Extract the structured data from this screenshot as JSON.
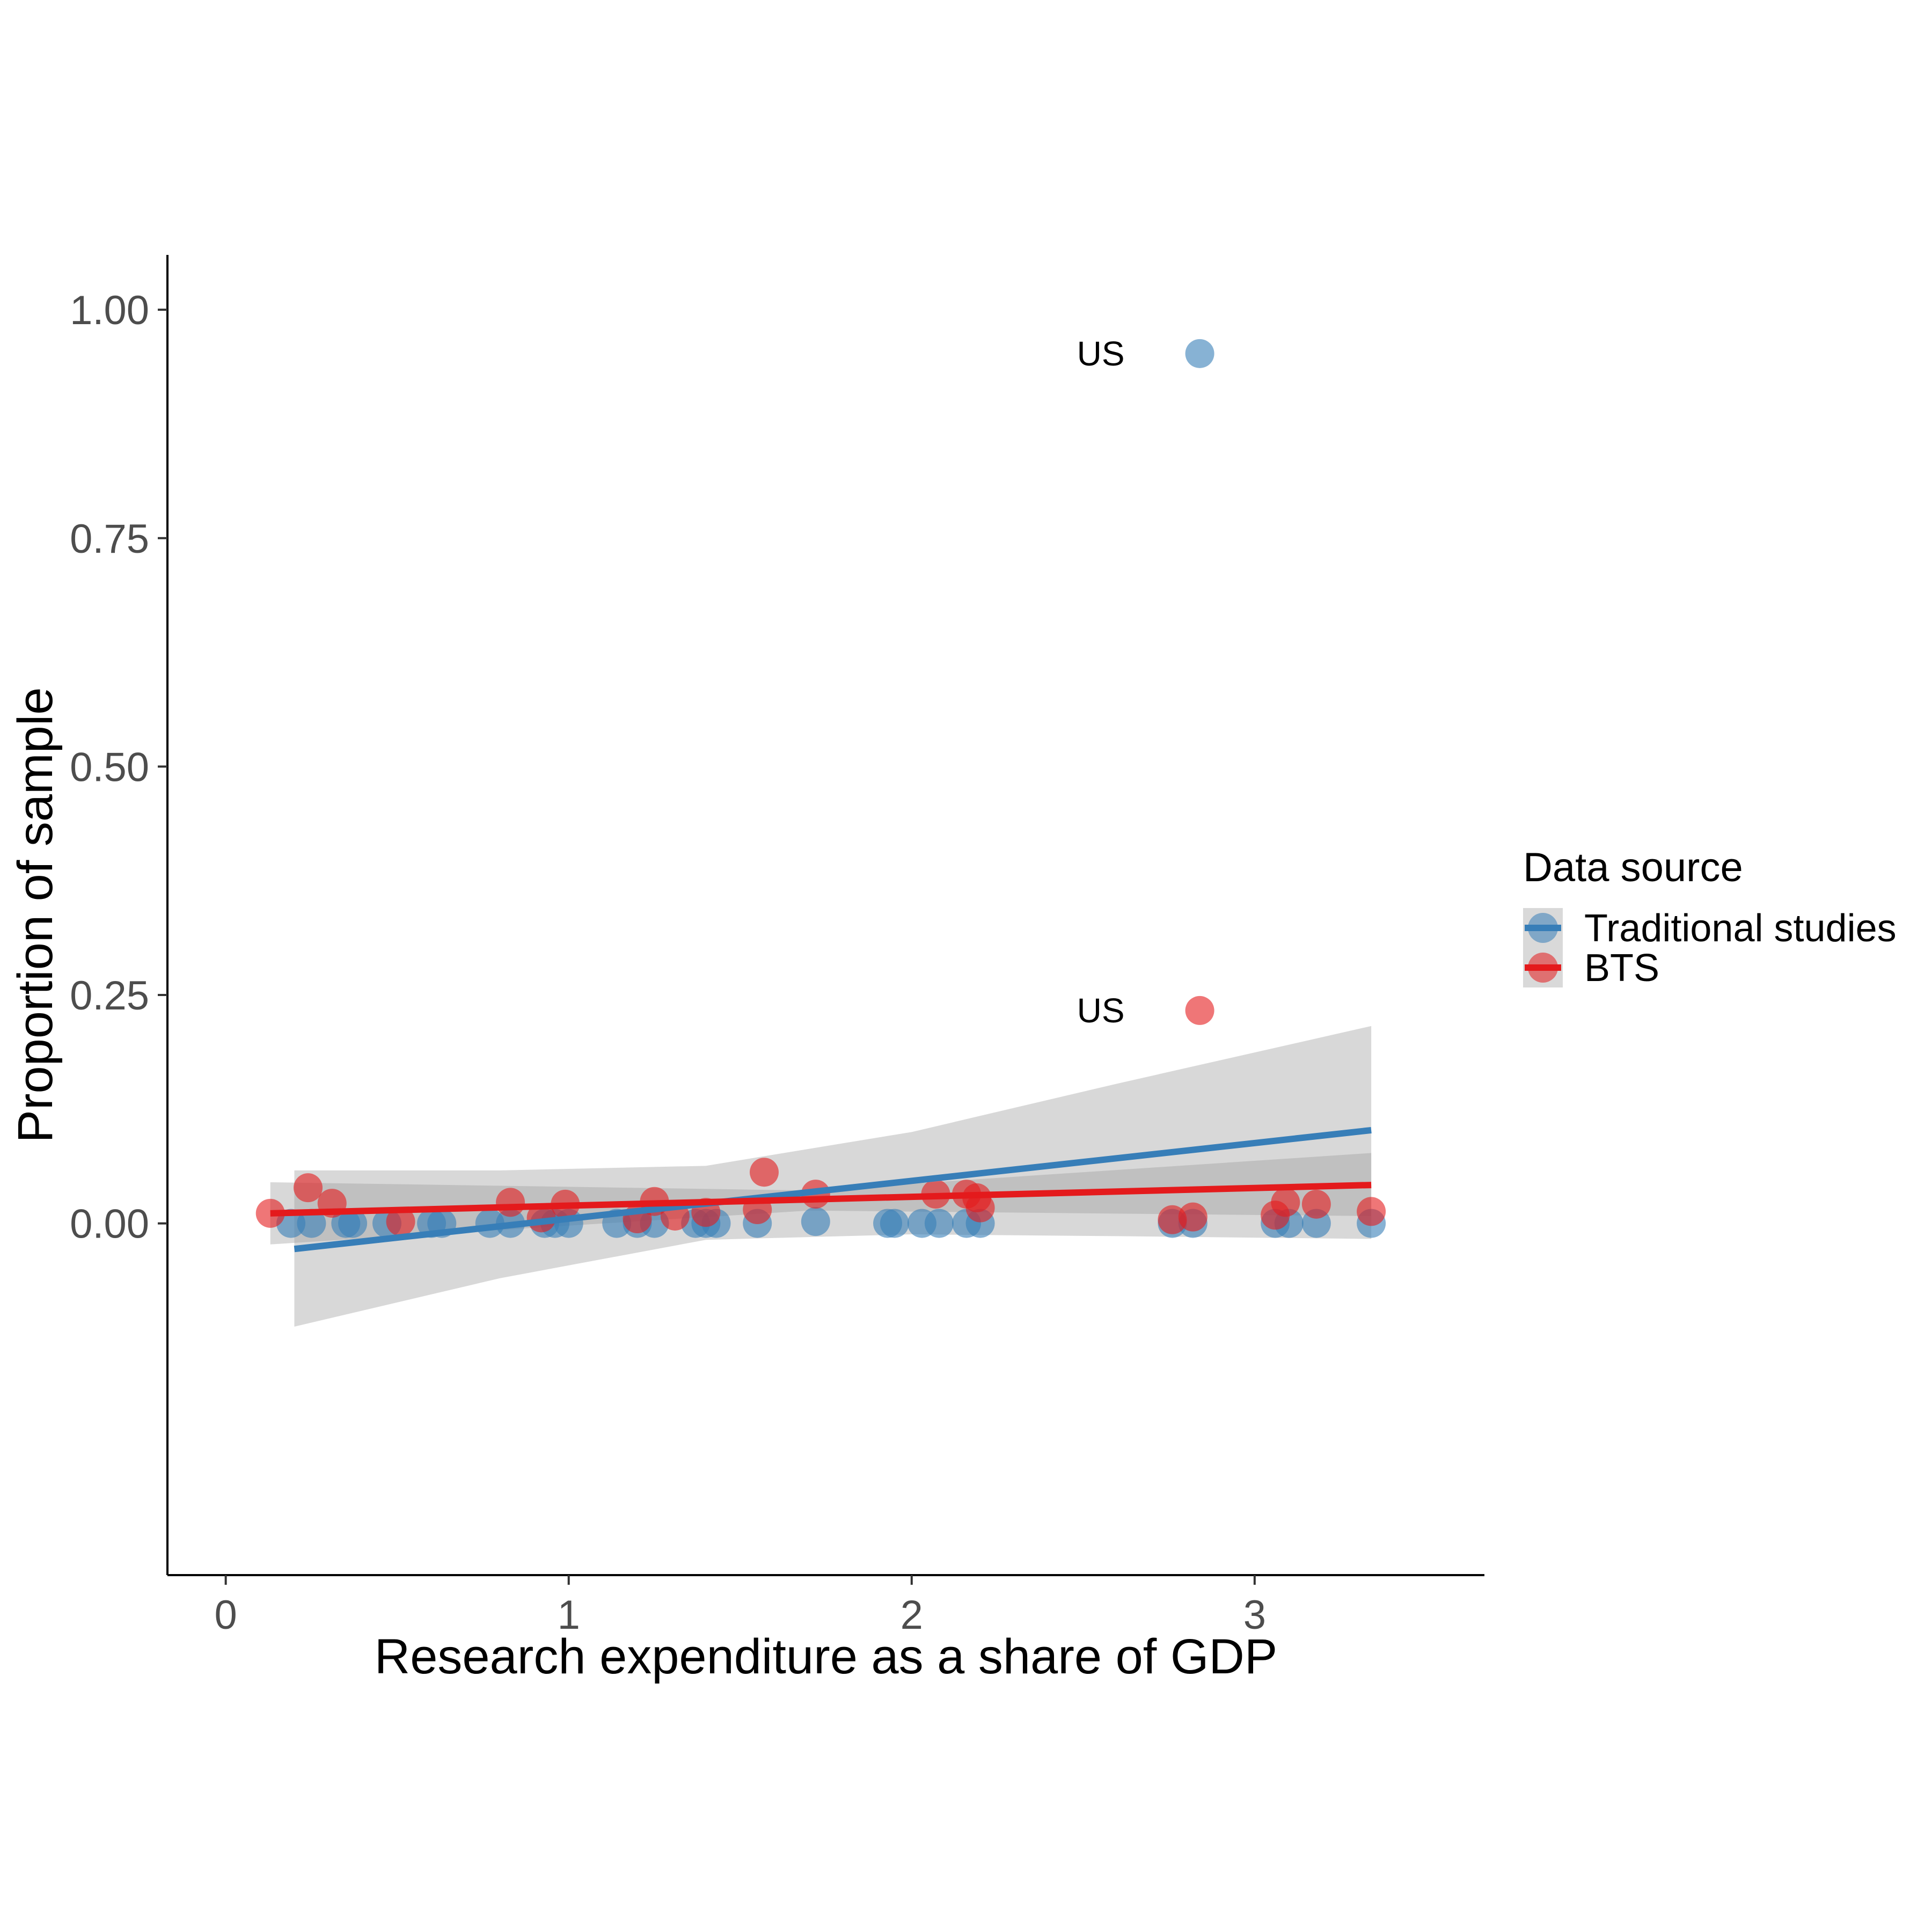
{
  "chart_data": {
    "type": "scatter",
    "title": "",
    "xlabel": "Research expenditure as a share of GDP",
    "ylabel": "Proportion of sample",
    "xlim": [
      -0.17,
      3.67
    ],
    "ylim": [
      -0.385,
      2.5
    ],
    "x_ticks": [
      0,
      1,
      2,
      3
    ],
    "x_tick_labels": [
      "0",
      "1",
      "2",
      "3"
    ],
    "y_ticks": [
      0,
      0.25,
      0.5,
      0.75,
      1.0
    ],
    "y_tick_labels": [
      "0.00",
      "0.25",
      "0.50",
      "0.75",
      "1.00"
    ],
    "y_display_max": 1.06,
    "grid": false,
    "legend": {
      "title": "Data source",
      "position": "right",
      "entries": [
        "Traditional studies",
        "BTS"
      ]
    },
    "series": [
      {
        "name": "Traditional studies",
        "color": "#377eb8",
        "points": [
          [
            0.19,
            0.0
          ],
          [
            0.25,
            0.0
          ],
          [
            0.35,
            0.0
          ],
          [
            0.37,
            0.0
          ],
          [
            0.47,
            0.0
          ],
          [
            0.6,
            0.0
          ],
          [
            0.63,
            0.0
          ],
          [
            0.77,
            0.0
          ],
          [
            0.83,
            0.0
          ],
          [
            0.93,
            0.0
          ],
          [
            0.96,
            0.0
          ],
          [
            1.0,
            0.0
          ],
          [
            1.14,
            0.0
          ],
          [
            1.2,
            0.0
          ],
          [
            1.25,
            0.0
          ],
          [
            1.37,
            0.0
          ],
          [
            1.4,
            0.0
          ],
          [
            1.43,
            0.0
          ],
          [
            1.55,
            0.0
          ],
          [
            1.72,
            0.002
          ],
          [
            1.93,
            0.0
          ],
          [
            1.95,
            0.0
          ],
          [
            2.03,
            0.0
          ],
          [
            2.08,
            0.0
          ],
          [
            2.16,
            0.0
          ],
          [
            2.2,
            0.0
          ],
          [
            2.76,
            0.0
          ],
          [
            2.82,
            0.0
          ],
          [
            2.84,
            0.952
          ],
          [
            3.06,
            0.0
          ],
          [
            3.1,
            0.0
          ],
          [
            3.18,
            0.0
          ],
          [
            3.34,
            0.0
          ]
        ],
        "fit": {
          "x": [
            0.2,
            3.34
          ],
          "y": [
            -0.028,
            0.102
          ]
        },
        "ci": {
          "x": [
            0.2,
            0.8,
            1.4,
            2.0,
            2.6,
            3.34
          ],
          "lower": [
            -0.113,
            -0.06,
            -0.018,
            -0.012,
            -0.014,
            -0.017
          ],
          "upper": [
            0.058,
            0.058,
            0.063,
            0.1,
            0.153,
            0.216
          ]
        },
        "labels": [
          {
            "x": 2.84,
            "y": 0.952,
            "text": "US"
          }
        ]
      },
      {
        "name": "BTS",
        "color": "#e41a1c",
        "points": [
          [
            0.13,
            0.011
          ],
          [
            0.24,
            0.039
          ],
          [
            0.31,
            0.022
          ],
          [
            0.51,
            0.002
          ],
          [
            0.83,
            0.023
          ],
          [
            0.92,
            0.006
          ],
          [
            0.99,
            0.021
          ],
          [
            1.2,
            0.005
          ],
          [
            1.25,
            0.024
          ],
          [
            1.31,
            0.008
          ],
          [
            1.4,
            0.012
          ],
          [
            1.55,
            0.015
          ],
          [
            1.57,
            0.056
          ],
          [
            1.72,
            0.032
          ],
          [
            2.07,
            0.032
          ],
          [
            2.16,
            0.032
          ],
          [
            2.19,
            0.028
          ],
          [
            2.2,
            0.017
          ],
          [
            2.76,
            0.004
          ],
          [
            2.82,
            0.007
          ],
          [
            2.84,
            0.233
          ],
          [
            3.06,
            0.009
          ],
          [
            3.09,
            0.023
          ],
          [
            3.18,
            0.021
          ],
          [
            3.34,
            0.013
          ]
        ],
        "fit": {
          "x": [
            0.13,
            3.34
          ],
          "y": [
            0.011,
            0.042
          ]
        },
        "ci": {
          "x": [
            0.13,
            1.7,
            3.34
          ],
          "lower": [
            -0.023,
            0.014,
            0.008
          ],
          "upper": [
            0.045,
            0.036,
            0.077
          ]
        },
        "labels": [
          {
            "x": 2.84,
            "y": 0.233,
            "text": "US"
          }
        ]
      }
    ]
  }
}
